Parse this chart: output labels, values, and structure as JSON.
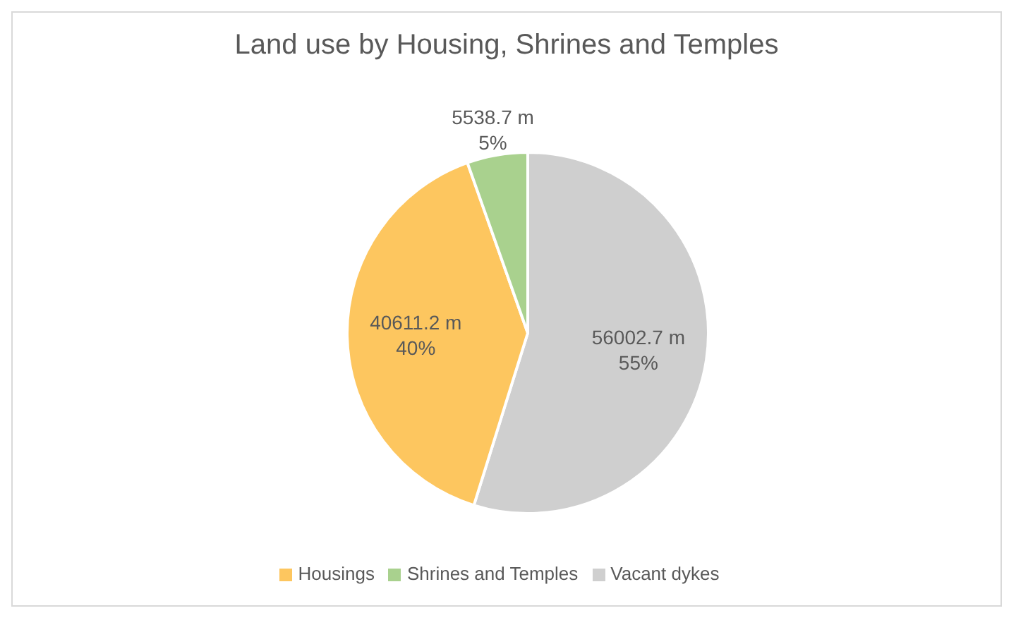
{
  "chart_data": {
    "type": "pie",
    "title": "Land use by Housing, Shrines and Temples",
    "categories": [
      "Vacant dykes",
      "Housings",
      "Shrines and Temples"
    ],
    "values": [
      56002.7,
      40611.2,
      5538.7
    ],
    "colors": [
      "#cfcfcf",
      "#fdc65f",
      "#a9d18e"
    ],
    "value_labels": [
      "56002.7 m\n55%",
      "40611.2 m\n40%",
      "5538.7 m\n5%"
    ],
    "legend": "bottom"
  }
}
